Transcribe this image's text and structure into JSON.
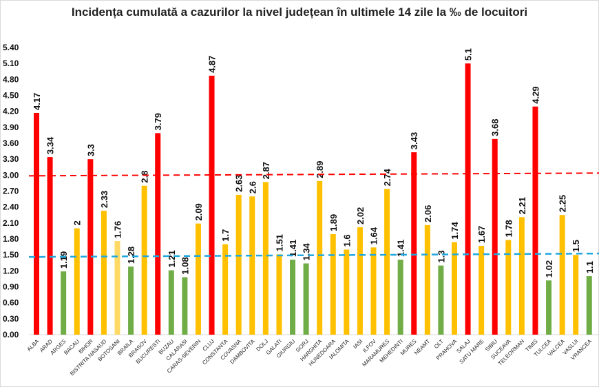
{
  "chart_data": {
    "type": "bar",
    "title": "Incidența cumulată a cazurilor la nivel județean în ultimele 14 zile la ‰ de locuitori",
    "xlabel": "",
    "ylabel": "",
    "ylim": [
      0,
      5.4
    ],
    "yticks": [
      "0.00",
      "0.30",
      "0.60",
      "0.90",
      "1.20",
      "1.50",
      "1.80",
      "2.10",
      "2.40",
      "2.70",
      "3.00",
      "3.30",
      "3.60",
      "3.90",
      "4.20",
      "4.50",
      "4.80",
      "5.10",
      "5.40"
    ],
    "grid": false,
    "legend": "none",
    "categories": [
      "ALBA",
      "ARAD",
      "ARGES",
      "BACAU",
      "BIHOR",
      "BISTRITA NASAUD",
      "BOTOSANI",
      "BRAILA",
      "BRASOV",
      "BUCURESTI",
      "BUZAU",
      "CALARASI",
      "CARAS-SEVERIN",
      "CLUJ",
      "CONSTANTA",
      "COVASNA",
      "DAMBOVITA",
      "DOLJ",
      "GALATI",
      "GIURGIU",
      "GORJ",
      "HARGHITA",
      "HUNEDOARA",
      "IALOMITA",
      "IASI",
      "ILFOV",
      "MARAMURES",
      "MEHEDINTI",
      "MURES",
      "NEAMT",
      "OLT",
      "PRAHOVA",
      "SALAJ",
      "SATU MARE",
      "SIBIU",
      "SUCEAVA",
      "TELEORMAN",
      "TIMIS",
      "TULCEA",
      "VALCEA",
      "VASLUI",
      "VRANCEA"
    ],
    "values": [
      4.17,
      3.34,
      1.19,
      2,
      3.3,
      2.33,
      1.76,
      1.28,
      2.8,
      3.79,
      1.21,
      1.08,
      2.09,
      4.87,
      1.7,
      2.63,
      2.6,
      2.87,
      1.51,
      1.41,
      1.34,
      2.89,
      1.89,
      1.6,
      2.02,
      1.64,
      2.74,
      1.41,
      3.43,
      2.06,
      1.3,
      1.74,
      5.1,
      1.67,
      3.68,
      1.78,
      2.21,
      4.29,
      1.02,
      2.25,
      1.5,
      1.1
    ],
    "value_labels": [
      "4.17",
      "3.34",
      "1.19",
      "2",
      "3.3",
      "2.33",
      "1.76",
      "1.28",
      "2.8",
      "3.79",
      "1.21",
      "1.08",
      "2.09",
      "4.87",
      "1.7",
      "2.63",
      "2.6",
      "2.87",
      "1.51",
      "1.41",
      "1.34",
      "2.89",
      "1.89",
      "1.6",
      "2.02",
      "1.64",
      "2.74",
      "1.41",
      "3.43",
      "2.06",
      "1.3",
      "1.74",
      "5.1",
      "1.67",
      "3.68",
      "1.78",
      "2.21",
      "4.29",
      "1.02",
      "2.25",
      "1.5",
      "1.1"
    ],
    "reference_lines": [
      {
        "value": 3.0,
        "color": "#ff0000",
        "style": "dashed"
      },
      {
        "value": 1.5,
        "color": "#1fa8e0",
        "style": "dashed"
      }
    ],
    "colors": {
      "high": "#ff0000",
      "medium": "#ffc000",
      "low": "#70ad47",
      "botosani": "#ffd966"
    }
  }
}
